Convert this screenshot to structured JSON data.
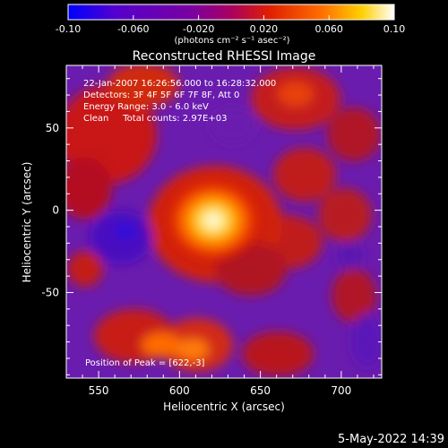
{
  "chart_data": {
    "type": "heatmap",
    "title": "Reconstructed RHESSI Image",
    "xlabel": "Heliocentric X (arcsec)",
    "ylabel": "Heliocentric Y (arcsec)",
    "xlim": [
      530,
      725
    ],
    "ylim": [
      -102,
      88
    ],
    "x_ticks": [
      550,
      600,
      650,
      700
    ],
    "y_ticks": [
      50,
      0,
      -50
    ],
    "colorbar": {
      "min": -0.1,
      "max": 0.1,
      "ticks": [
        "-0.10",
        "-0.060",
        "-0.020",
        "0.020",
        "0.060",
        "0.10"
      ],
      "label": "(photons cm⁻² s⁻¹ asec⁻²)",
      "colors": [
        "#0000ff",
        "#5500cc",
        "#7a00a0",
        "#aa0060",
        "#e02000",
        "#ff7000",
        "#ffd000",
        "#ffffff"
      ]
    },
    "annotations": [
      "22-Jan-2007 16:26:56.000 to 16:28:32.000",
      "Detectors: 3F 4F 5F 6F 7F 8F, Att 0",
      "Energy Range: 3.0 - 6.0 keV",
      "Clean     Total counts: 2.97E+03"
    ],
    "peak_label": "Position of Peak = [622,-3]",
    "peak": [
      622,
      -3
    ]
  },
  "footer_date": "5-May-2022 14:39"
}
